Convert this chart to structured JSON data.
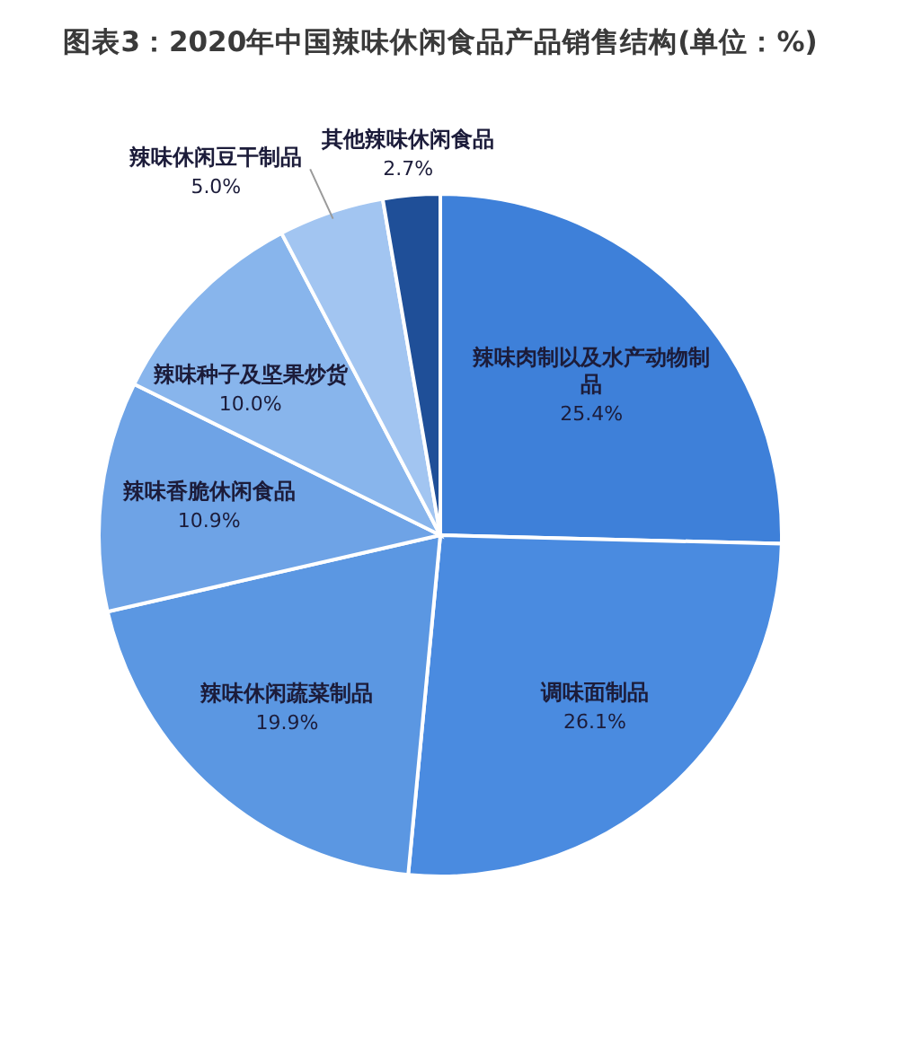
{
  "chart_data": {
    "type": "pie",
    "title": "图表3：2020年中国辣味休闲食品产品销售结构(单位：%)",
    "categories": [
      "辣味肉制以及水产动物制品",
      "调味面制品",
      "辣味休闲蔬菜制品",
      "辣味香脆休闲食品",
      "辣味种子及坚果炒货",
      "辣味休闲豆干制品",
      "其他辣味休闲食品"
    ],
    "values": [
      25.4,
      26.1,
      19.9,
      10.9,
      10.0,
      5.0,
      2.7
    ],
    "colors": [
      "#3e80d9",
      "#4a8be0",
      "#5b97e2",
      "#6ea3e6",
      "#88b5ec",
      "#a2c5f1",
      "#1f4f98"
    ],
    "value_labels": [
      "25.4%",
      "26.1%",
      "19.9%",
      "10.9%",
      "10.0%",
      "5.0%",
      "2.7%"
    ]
  }
}
